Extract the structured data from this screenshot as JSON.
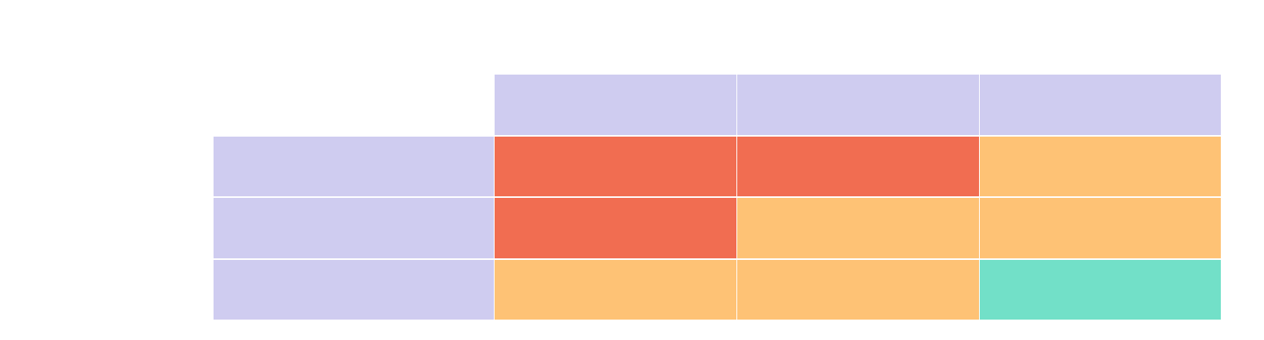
{
  "colors": {
    "header": "#cfccf0",
    "high": "#f16d51",
    "medium": "#fec275",
    "low": "#72e0c8",
    "background": "#ffffff"
  },
  "grid": {
    "column_headers": [
      "",
      "",
      ""
    ],
    "row_headers": [
      "",
      "",
      ""
    ],
    "levels": [
      [
        "high",
        "high",
        "medium"
      ],
      [
        "high",
        "medium",
        "medium"
      ],
      [
        "medium",
        "medium",
        "low"
      ]
    ],
    "cell_labels": [
      [
        "",
        "",
        ""
      ],
      [
        "",
        "",
        ""
      ],
      [
        "",
        "",
        ""
      ]
    ]
  }
}
